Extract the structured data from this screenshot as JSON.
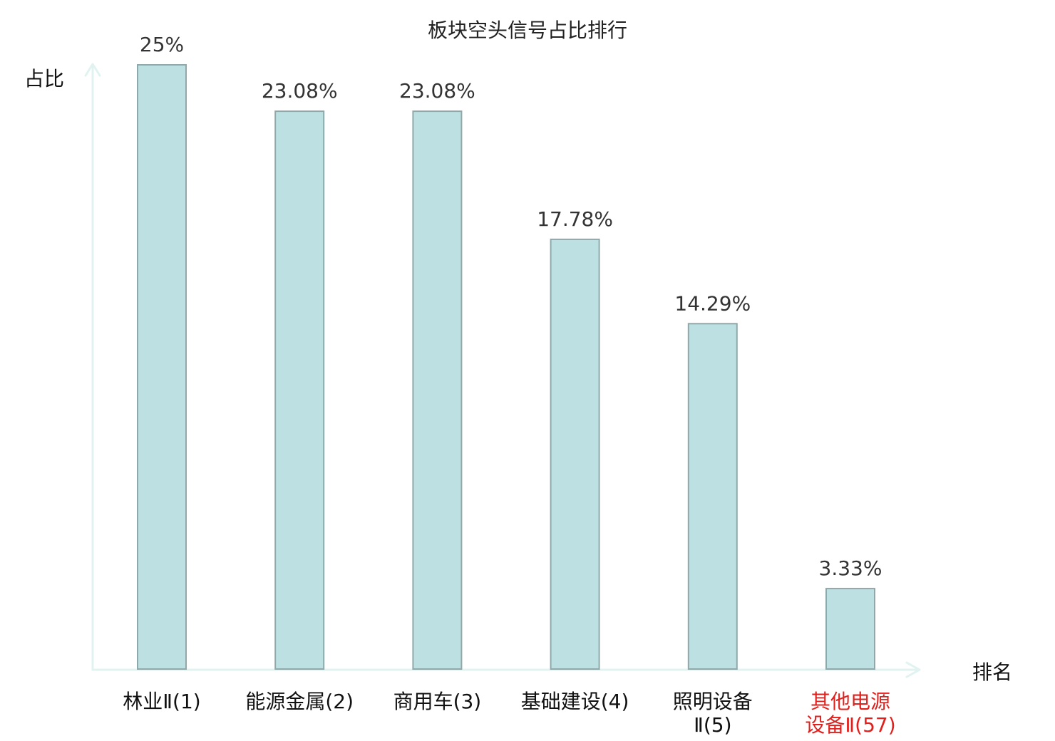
{
  "chart_data": {
    "type": "bar",
    "title": "板块空头信号占比排行",
    "ylabel": "占比",
    "xlabel": "排名",
    "ylim": [
      0,
      25
    ],
    "grid": false,
    "categories": [
      [
        "林业Ⅱ(1)"
      ],
      [
        "能源金属(2)"
      ],
      [
        "商用车(3)"
      ],
      [
        "基础建设(4)"
      ],
      [
        "照明设备",
        "Ⅱ(5)"
      ],
      [
        "其他电源",
        "设备Ⅱ(57)"
      ]
    ],
    "values": [
      25,
      23.08,
      23.08,
      17.78,
      14.29,
      3.33
    ],
    "value_labels": [
      "25%",
      "23.08%",
      "23.08%",
      "17.78%",
      "14.29%",
      "3.33%"
    ],
    "highlight_index": 5
  },
  "colors": {
    "bar_fill": "#bde0e2",
    "bar_stroke": "#8fa9ab",
    "axis": "#e0f3f1",
    "highlight": "#e0201c"
  }
}
